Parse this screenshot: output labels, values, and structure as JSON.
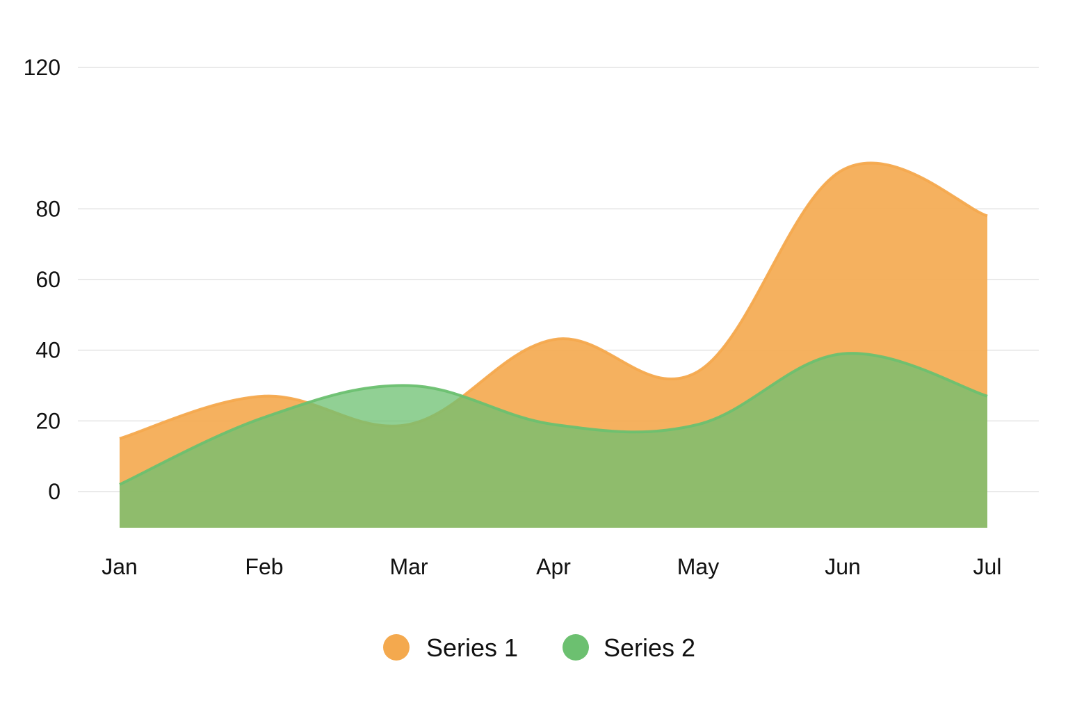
{
  "chart_data": {
    "type": "area",
    "categories": [
      "Jan",
      "Feb",
      "Mar",
      "Apr",
      "May",
      "Jun",
      "Jul"
    ],
    "series": [
      {
        "name": "Series 1",
        "color": "#f4a94e",
        "values": [
          15,
          27,
          19,
          43,
          34,
          91,
          78
        ]
      },
      {
        "name": "Series 2",
        "color": "#6cc070",
        "values": [
          2,
          21,
          30,
          19,
          19,
          39,
          27
        ]
      }
    ],
    "y_ticks": [
      0,
      20,
      40,
      60,
      80,
      120
    ],
    "ylim": [
      -9,
      120
    ],
    "grid": true,
    "legend": "bottom-center"
  }
}
